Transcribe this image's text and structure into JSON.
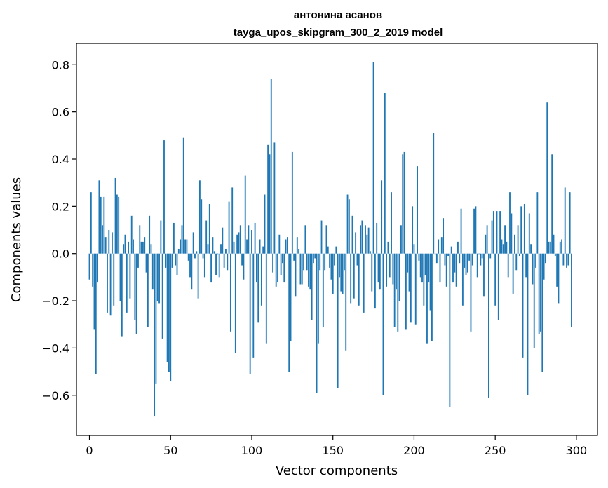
{
  "chart_data": {
    "type": "bar",
    "title": "антонина асанов",
    "subtitle": "tayga_upos_skipgram_300_2_2019 model",
    "xlabel": "Vector components",
    "ylabel": "Components values",
    "xlim": [
      -8,
      313
    ],
    "ylim": [
      -0.77,
      0.89
    ],
    "xticks": [
      0,
      50,
      100,
      150,
      200,
      250,
      300
    ],
    "yticks": [
      -0.6,
      -0.4,
      -0.2,
      0.0,
      0.2,
      0.4,
      0.6,
      0.8
    ],
    "xtick_labels": [
      "0",
      "50",
      "100",
      "150",
      "200",
      "250",
      "300"
    ],
    "ytick_labels": [
      "−0.6",
      "−0.4",
      "−0.2",
      "0.0",
      "0.2",
      "0.4",
      "0.6",
      "0.8"
    ],
    "grid": false,
    "bar_color": "#1f77b4",
    "values": [
      -0.11,
      0.26,
      -0.14,
      -0.32,
      -0.51,
      -0.12,
      0.31,
      0.24,
      0.12,
      0.24,
      0.07,
      -0.25,
      0.1,
      -0.26,
      0.09,
      -0.22,
      0.32,
      0.25,
      0.24,
      -0.2,
      -0.35,
      0.04,
      0.08,
      -0.25,
      0.05,
      -0.19,
      0.16,
      0.06,
      -0.28,
      -0.34,
      -0.06,
      0.12,
      0.05,
      0.05,
      0.07,
      -0.08,
      -0.31,
      0.16,
      0.04,
      -0.15,
      -0.69,
      -0.55,
      -0.2,
      -0.21,
      0.14,
      -0.36,
      0.48,
      -0.06,
      -0.46,
      -0.5,
      -0.54,
      -0.06,
      0.13,
      -0.05,
      -0.09,
      0.02,
      0.06,
      0.12,
      0.49,
      0.06,
      0.06,
      -0.03,
      -0.1,
      -0.15,
      0.09,
      -0.02,
      0.01,
      -0.19,
      0.31,
      0.23,
      -0.02,
      -0.1,
      0.14,
      0.04,
      0.21,
      -0.12,
      0.07,
      0.01,
      -0.09,
      0.0,
      -0.1,
      0.04,
      0.11,
      -0.06,
      0.02,
      -0.07,
      0.22,
      -0.33,
      0.28,
      0.05,
      -0.42,
      0.08,
      0.09,
      0.12,
      -0.05,
      -0.11,
      0.33,
      0.06,
      0.12,
      -0.51,
      0.1,
      -0.44,
      0.13,
      -0.12,
      -0.29,
      0.06,
      -0.22,
      0.03,
      0.25,
      -0.38,
      0.46,
      0.42,
      0.74,
      -0.08,
      0.47,
      -0.14,
      -0.12,
      0.08,
      -0.09,
      -0.04,
      -0.12,
      0.06,
      0.07,
      -0.5,
      -0.37,
      0.43,
      -0.03,
      -0.18,
      0.07,
      0.02,
      -0.13,
      -0.13,
      -0.07,
      0.12,
      -0.07,
      -0.14,
      -0.15,
      -0.28,
      -0.04,
      -0.02,
      -0.59,
      -0.38,
      -0.07,
      0.14,
      -0.31,
      -0.07,
      0.12,
      0.03,
      -0.06,
      -0.11,
      -0.17,
      -0.05,
      0.03,
      -0.57,
      -0.1,
      -0.16,
      -0.17,
      -0.07,
      -0.41,
      0.25,
      0.23,
      -0.21,
      0.16,
      -0.19,
      0.09,
      -0.05,
      -0.22,
      0.12,
      0.14,
      -0.25,
      0.12,
      0.08,
      0.11,
      0.01,
      -0.16,
      0.81,
      -0.23,
      0.13,
      -0.12,
      -0.15,
      0.31,
      -0.6,
      0.68,
      -0.14,
      0.05,
      -0.1,
      0.26,
      -0.13,
      -0.31,
      -0.15,
      -0.33,
      -0.2,
      0.12,
      0.42,
      0.43,
      -0.32,
      -0.08,
      -0.16,
      -0.29,
      0.2,
      0.04,
      -0.3,
      0.37,
      -0.03,
      -0.1,
      -0.12,
      -0.22,
      -0.09,
      -0.38,
      -0.12,
      -0.24,
      -0.37,
      0.51,
      0.0,
      -0.04,
      0.06,
      -0.12,
      0.07,
      0.15,
      -0.05,
      -0.14,
      -0.01,
      -0.65,
      0.03,
      -0.12,
      -0.08,
      -0.14,
      0.05,
      -0.04,
      0.19,
      -0.22,
      -0.06,
      -0.09,
      -0.08,
      -0.03,
      -0.33,
      -0.05,
      0.19,
      0.2,
      -0.1,
      0.0,
      -0.05,
      -0.02,
      -0.18,
      0.08,
      0.12,
      -0.61,
      -0.02,
      0.14,
      0.18,
      -0.22,
      0.18,
      -0.28,
      0.18,
      0.06,
      0.04,
      0.12,
      0.05,
      -0.1,
      0.26,
      0.17,
      -0.17,
      0.08,
      -0.07,
      0.12,
      -0.01,
      0.2,
      -0.44,
      0.21,
      -0.1,
      -0.6,
      0.17,
      0.04,
      -0.13,
      -0.4,
      -0.06,
      0.26,
      -0.34,
      -0.33,
      -0.5,
      -0.11,
      -0.04,
      0.64,
      0.05,
      0.05,
      0.42,
      0.08,
      -0.01,
      -0.14,
      -0.21,
      0.05,
      0.06,
      -0.05,
      0.28,
      -0.06,
      -0.05,
      0.26,
      -0.31
    ]
  }
}
